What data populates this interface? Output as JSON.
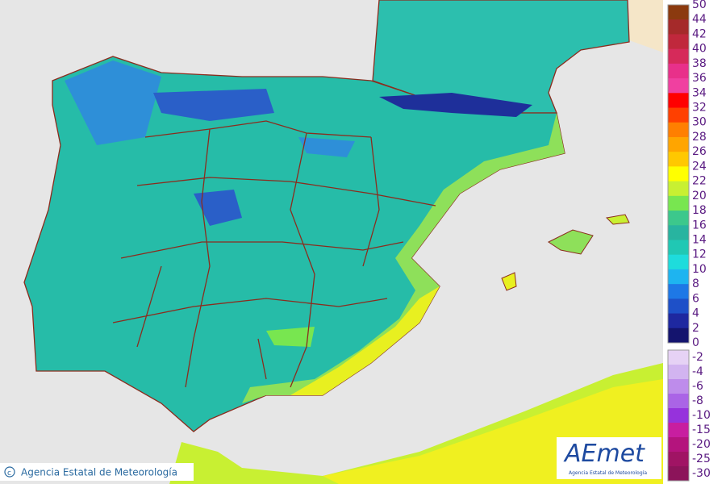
{
  "map": {
    "credit": "Agencia Estatal de Meteorología",
    "logo": {
      "name": "AEmet",
      "subtitle": "Agencia Estatal de Meteorología"
    }
  },
  "legend": {
    "positive": {
      "labels": [
        "50",
        "44",
        "42",
        "40",
        "38",
        "36",
        "34",
        "32",
        "30",
        "28",
        "26",
        "24",
        "22",
        "20",
        "18",
        "16",
        "14",
        "12",
        "10",
        "8",
        "6",
        "4",
        "2",
        "0"
      ],
      "colors": [
        "#8b3a0f",
        "#a52a2a",
        "#c0283c",
        "#d62a5a",
        "#e8308a",
        "#f040a0",
        "#ff0000",
        "#ff4000",
        "#ff7f00",
        "#ffa500",
        "#ffc800",
        "#ffff00",
        "#c8f032",
        "#78e650",
        "#3cc88c",
        "#28b4a0",
        "#20c8b4",
        "#1edcdc",
        "#1eb4f0",
        "#1e78e6",
        "#1e50c8",
        "#1e28a0",
        "#14146e"
      ]
    },
    "negative": {
      "labels": [
        "-2",
        "-4",
        "-6",
        "-8",
        "-10",
        "-15",
        "-20",
        "-25",
        "-30"
      ],
      "colors": [
        "#e6d2f5",
        "#d2b4f0",
        "#be8ceb",
        "#aa64e6",
        "#9632dc",
        "#c81ea0",
        "#b4147d",
        "#a01464",
        "#8c145a"
      ]
    }
  }
}
